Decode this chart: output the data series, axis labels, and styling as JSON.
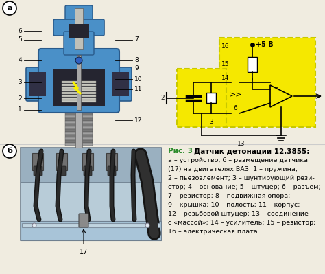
{
  "background_color": "#f0ece0",
  "panel_a_label": "а",
  "panel_b_label": "б",
  "circuit_bg": "#f5e800",
  "circuit_border": "#c8c800",
  "description_title": "Датчик детонации 12.3855:",
  "description_lines": [
    "а – устройство; б – размещение датчика",
    "(17) на двигателях ВАЗ: 1 – пружина;",
    "2 – пьезоэлемент; 3 – шунтирующий рези-",
    "стор; 4 – основание; 5 – штуцер; 6 – разъем;",
    "7 – резистор; 8 – подвижная опора;",
    "9 – крышка; 10 – полость; 11 – корпус;",
    "12 – резьбовой штуцер; 13 – соединение",
    "с «массой»; 14 – усилитель; 15 – резистор;",
    "16 – электрическая плата"
  ],
  "fig_label_color": "#2a8a2a",
  "sensor_blue": "#4a90c8",
  "sensor_blue_dark": "#2a5a8a",
  "sensor_blue_light": "#6ab0e8",
  "sensor_inner_dark": "#303040",
  "bolt_gray": "#909090",
  "bolt_dark": "#606060",
  "spring_color": "#c0c0c0",
  "piezo_yellow": "#e8c840"
}
